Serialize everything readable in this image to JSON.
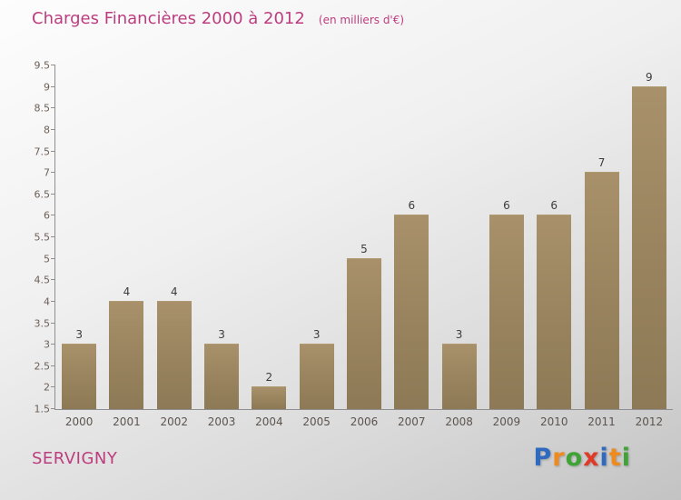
{
  "header": {
    "title": "Charges Financières 2000 à 2012",
    "subtitle": "(en milliers d'€)"
  },
  "footer": {
    "location": "SERVIGNY"
  },
  "logo": {
    "name": "Proxiti",
    "letters": [
      {
        "ch": "P",
        "color": "#2e6bc0"
      },
      {
        "ch": "r",
        "color": "#ef8b1d"
      },
      {
        "ch": "o",
        "color": "#3fa435"
      },
      {
        "ch": "x",
        "color": "#e03a26"
      },
      {
        "ch": "i",
        "color": "#2e6bc0"
      },
      {
        "ch": "t",
        "color": "#ef8b1d"
      },
      {
        "ch": "i",
        "color": "#3fa435"
      }
    ]
  },
  "colors": {
    "title": "#bc3d7f",
    "bar": "#98835e",
    "axis": "#8f8f8f",
    "tick_text": "#6e5f57",
    "value_text": "#3c3c3c"
  },
  "chart_data": {
    "type": "bar",
    "title": "Charges Financières 2000 à 2012",
    "subtitle": "(en milliers d'€)",
    "categories": [
      "2000",
      "2001",
      "2002",
      "2003",
      "2004",
      "2005",
      "2006",
      "2007",
      "2008",
      "2009",
      "2010",
      "2011",
      "2012"
    ],
    "values": [
      3,
      4,
      4,
      3,
      2,
      3,
      5,
      6,
      3,
      6,
      6,
      7,
      9
    ],
    "xlabel": "",
    "ylabel": "",
    "ylim": [
      1.5,
      9.5
    ],
    "ytick_step": 0.5,
    "grid": false,
    "legend": false,
    "bar_color": "#98835e"
  }
}
